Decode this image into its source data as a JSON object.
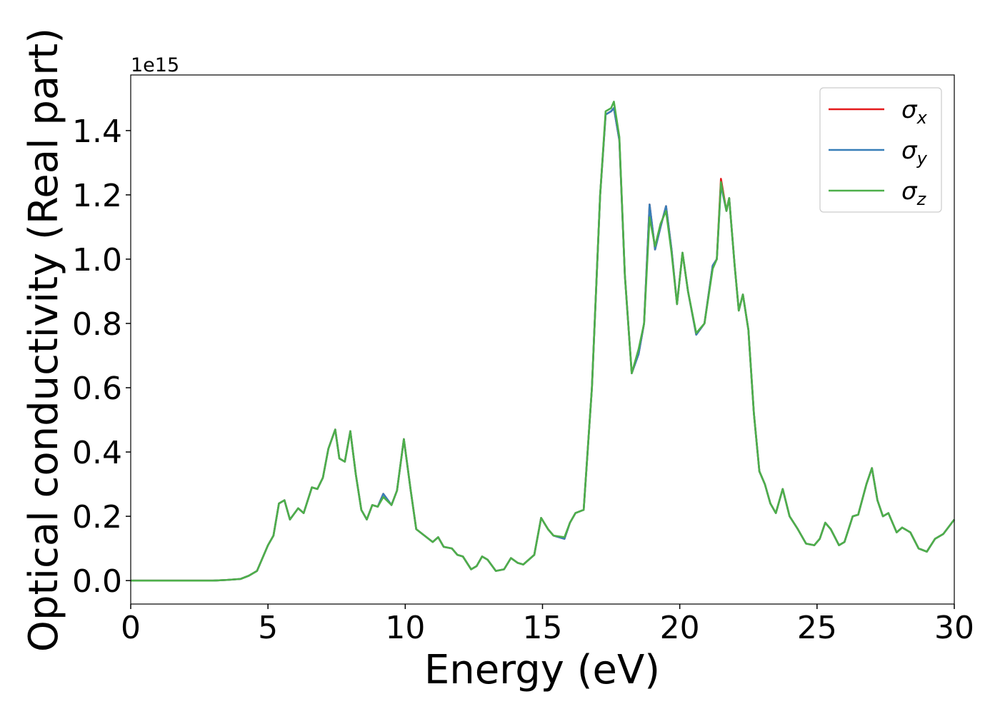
{
  "chart_data": {
    "type": "line",
    "xlabel": "Energy (eV)",
    "ylabel": "Optical conductivity (Real part)",
    "y_offset_label": "1e15",
    "xlim": [
      0,
      30
    ],
    "xticks": [
      0,
      5,
      10,
      15,
      20,
      25,
      30
    ],
    "ylim": [
      -0.073,
      1.573
    ],
    "yticks": [
      {
        "value": 0,
        "label": "0.0"
      },
      0.2,
      0.4,
      0.6,
      0.8,
      {
        "value": 1,
        "label": "1.0"
      },
      1.2,
      1.4
    ],
    "legend": "upper right",
    "x": [
      0,
      1,
      2,
      3,
      3.5,
      4,
      4.3,
      4.6,
      4.8,
      5.0,
      5.2,
      5.4,
      5.6,
      5.8,
      6.1,
      6.3,
      6.6,
      6.8,
      7.0,
      7.2,
      7.45,
      7.6,
      7.8,
      8.0,
      8.2,
      8.4,
      8.6,
      8.8,
      9.0,
      9.2,
      9.5,
      9.7,
      9.95,
      10.2,
      10.4,
      10.7,
      11.0,
      11.2,
      11.4,
      11.7,
      11.9,
      12.1,
      12.4,
      12.6,
      12.8,
      13.0,
      13.3,
      13.6,
      13.85,
      14.1,
      14.3,
      14.7,
      14.95,
      15.2,
      15.4,
      15.8,
      16.0,
      16.2,
      16.5,
      16.8,
      17.1,
      17.3,
      17.5,
      17.6,
      17.8,
      18.0,
      18.25,
      18.5,
      18.7,
      18.9,
      19.1,
      19.3,
      19.5,
      19.7,
      19.9,
      20.1,
      20.3,
      20.6,
      20.9,
      21.2,
      21.35,
      21.5,
      21.7,
      21.8,
      22.0,
      22.15,
      22.3,
      22.5,
      22.7,
      22.9,
      23.1,
      23.3,
      23.5,
      23.75,
      24.0,
      24.3,
      24.6,
      24.9,
      25.1,
      25.3,
      25.5,
      25.8,
      26.0,
      26.3,
      26.5,
      26.8,
      27.0,
      27.2,
      27.4,
      27.6,
      27.9,
      28.1,
      28.4,
      28.7,
      29.0,
      29.3,
      29.6,
      30.0
    ],
    "series": [
      {
        "name": "σx",
        "color": "#e41a1c",
        "values": [
          0,
          0,
          0,
          0,
          0.002,
          0.005,
          0.015,
          0.03,
          0.07,
          0.11,
          0.14,
          0.24,
          0.25,
          0.19,
          0.225,
          0.21,
          0.29,
          0.285,
          0.32,
          0.41,
          0.47,
          0.38,
          0.37,
          0.465,
          0.33,
          0.22,
          0.19,
          0.235,
          0.23,
          0.27,
          0.235,
          0.28,
          0.44,
          0.28,
          0.16,
          0.14,
          0.12,
          0.135,
          0.105,
          0.1,
          0.08,
          0.075,
          0.035,
          0.045,
          0.075,
          0.065,
          0.03,
          0.035,
          0.07,
          0.055,
          0.05,
          0.08,
          0.195,
          0.16,
          0.14,
          0.13,
          0.18,
          0.21,
          0.22,
          0.6,
          1.2,
          1.45,
          1.46,
          1.47,
          1.37,
          0.95,
          0.645,
          0.705,
          0.8,
          1.17,
          1.03,
          1.1,
          1.165,
          1.03,
          0.86,
          1.02,
          0.9,
          0.765,
          0.8,
          0.98,
          1.0,
          1.25,
          1.15,
          1.19,
          0.98,
          0.84,
          0.89,
          0.78,
          0.52,
          0.34,
          0.3,
          0.24,
          0.21,
          0.285,
          0.2,
          0.16,
          0.115,
          0.11,
          0.13,
          0.18,
          0.16,
          0.11,
          0.12,
          0.2,
          0.205,
          0.3,
          0.35,
          0.25,
          0.2,
          0.21,
          0.15,
          0.165,
          0.15,
          0.1,
          0.09,
          0.13,
          0.145,
          0.19
        ]
      },
      {
        "name": "σy",
        "color": "#377eb8",
        "values": [
          0,
          0,
          0,
          0,
          0.002,
          0.005,
          0.015,
          0.03,
          0.07,
          0.11,
          0.14,
          0.24,
          0.25,
          0.19,
          0.225,
          0.21,
          0.29,
          0.285,
          0.32,
          0.41,
          0.47,
          0.38,
          0.37,
          0.465,
          0.33,
          0.22,
          0.19,
          0.235,
          0.23,
          0.27,
          0.235,
          0.28,
          0.44,
          0.28,
          0.16,
          0.14,
          0.12,
          0.135,
          0.105,
          0.1,
          0.08,
          0.075,
          0.035,
          0.045,
          0.075,
          0.065,
          0.03,
          0.035,
          0.07,
          0.055,
          0.05,
          0.08,
          0.195,
          0.16,
          0.14,
          0.13,
          0.18,
          0.21,
          0.22,
          0.6,
          1.2,
          1.45,
          1.46,
          1.47,
          1.37,
          0.95,
          0.645,
          0.705,
          0.8,
          1.17,
          1.03,
          1.1,
          1.165,
          1.03,
          0.86,
          1.02,
          0.9,
          0.765,
          0.8,
          0.98,
          1.0,
          1.23,
          1.15,
          1.19,
          0.98,
          0.84,
          0.89,
          0.78,
          0.52,
          0.34,
          0.3,
          0.24,
          0.21,
          0.285,
          0.2,
          0.16,
          0.115,
          0.11,
          0.13,
          0.18,
          0.16,
          0.11,
          0.12,
          0.2,
          0.205,
          0.3,
          0.35,
          0.25,
          0.2,
          0.21,
          0.15,
          0.165,
          0.15,
          0.1,
          0.09,
          0.13,
          0.145,
          0.19
        ]
      },
      {
        "name": "σz",
        "color": "#4daf4a",
        "values": [
          0,
          0,
          0,
          0,
          0.002,
          0.005,
          0.015,
          0.03,
          0.07,
          0.11,
          0.14,
          0.24,
          0.25,
          0.19,
          0.225,
          0.21,
          0.29,
          0.285,
          0.32,
          0.41,
          0.47,
          0.38,
          0.37,
          0.465,
          0.33,
          0.22,
          0.19,
          0.235,
          0.23,
          0.26,
          0.235,
          0.28,
          0.44,
          0.28,
          0.16,
          0.14,
          0.12,
          0.135,
          0.105,
          0.1,
          0.08,
          0.075,
          0.035,
          0.045,
          0.075,
          0.065,
          0.03,
          0.035,
          0.07,
          0.055,
          0.05,
          0.08,
          0.195,
          0.16,
          0.14,
          0.135,
          0.18,
          0.21,
          0.22,
          0.6,
          1.2,
          1.46,
          1.47,
          1.49,
          1.38,
          0.95,
          0.645,
          0.72,
          0.8,
          1.13,
          1.04,
          1.11,
          1.15,
          1.02,
          0.86,
          1.02,
          0.9,
          0.77,
          0.8,
          0.97,
          1.0,
          1.24,
          1.15,
          1.19,
          0.98,
          0.84,
          0.89,
          0.78,
          0.52,
          0.34,
          0.3,
          0.24,
          0.21,
          0.285,
          0.2,
          0.16,
          0.115,
          0.11,
          0.13,
          0.18,
          0.16,
          0.11,
          0.12,
          0.2,
          0.205,
          0.3,
          0.35,
          0.25,
          0.2,
          0.21,
          0.15,
          0.165,
          0.15,
          0.1,
          0.09,
          0.13,
          0.145,
          0.19
        ]
      }
    ]
  }
}
